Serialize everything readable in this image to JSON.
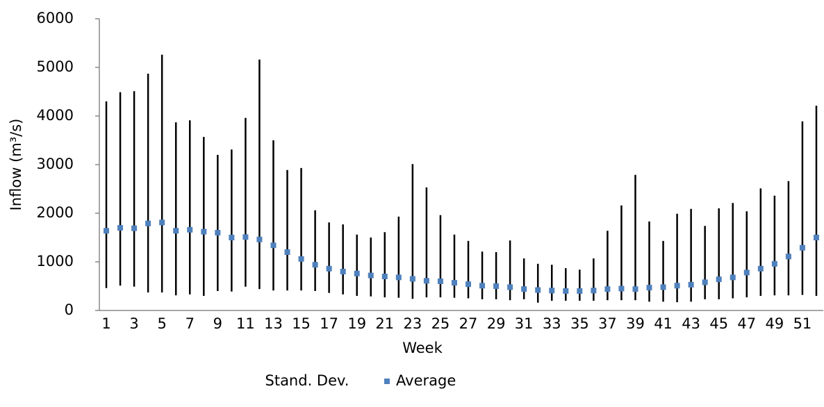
{
  "chart_data": {
    "type": "hilo",
    "x_label": "Week",
    "y_label": "Inflow (m³/s)",
    "categories": [
      "1",
      null,
      "3",
      null,
      "5",
      null,
      "7",
      null,
      "9",
      null,
      "11",
      null,
      "13",
      null,
      "15",
      null,
      "17",
      null,
      "19",
      null,
      "21",
      null,
      "23",
      null,
      "25",
      null,
      "27",
      null,
      "29",
      null,
      "31",
      null,
      "33",
      null,
      "35",
      null,
      "37",
      null,
      "39",
      null,
      "41",
      null,
      "43",
      null,
      "45",
      null,
      "47",
      null,
      "49",
      null,
      "51",
      null
    ],
    "series": [
      {
        "name": "Stand. Dev.",
        "color": "#000000",
        "high": [
          4300,
          4490,
          4510,
          4870,
          5260,
          3870,
          3910,
          3570,
          3200,
          3310,
          3960,
          5160,
          3500,
          2890,
          2930,
          2060,
          1810,
          1770,
          1560,
          1500,
          1610,
          1930,
          3010,
          2530,
          1960,
          1560,
          1430,
          1210,
          1200,
          1440,
          1070,
          960,
          940,
          870,
          840,
          1070,
          1640,
          2160,
          2790,
          1830,
          1430,
          1990,
          2090,
          1740,
          2100,
          2210,
          2040,
          2510,
          2360,
          2660,
          3890,
          4210
        ],
        "low": [
          460,
          510,
          490,
          370,
          370,
          310,
          330,
          300,
          400,
          390,
          490,
          440,
          410,
          410,
          410,
          400,
          360,
          330,
          300,
          290,
          270,
          260,
          240,
          270,
          270,
          260,
          250,
          230,
          230,
          210,
          230,
          160,
          200,
          200,
          200,
          200,
          210,
          210,
          210,
          180,
          180,
          170,
          180,
          230,
          230,
          250,
          270,
          300,
          310,
          310,
          320,
          300
        ]
      },
      {
        "name": "Average",
        "color": "#4f81bd",
        "values": [
          1640,
          1700,
          1690,
          1790,
          1810,
          1640,
          1660,
          1620,
          1600,
          1500,
          1510,
          1460,
          1340,
          1200,
          1060,
          940,
          860,
          800,
          760,
          720,
          700,
          680,
          650,
          610,
          600,
          570,
          540,
          510,
          500,
          480,
          440,
          420,
          410,
          400,
          400,
          410,
          440,
          450,
          440,
          470,
          480,
          510,
          530,
          580,
          640,
          680,
          780,
          860,
          960,
          1110,
          1290,
          1500
        ]
      }
    ],
    "ylim": [
      0,
      6000
    ],
    "yticks": [
      0,
      1000,
      2000,
      3000,
      4000,
      5000,
      6000
    ],
    "grid": false
  }
}
